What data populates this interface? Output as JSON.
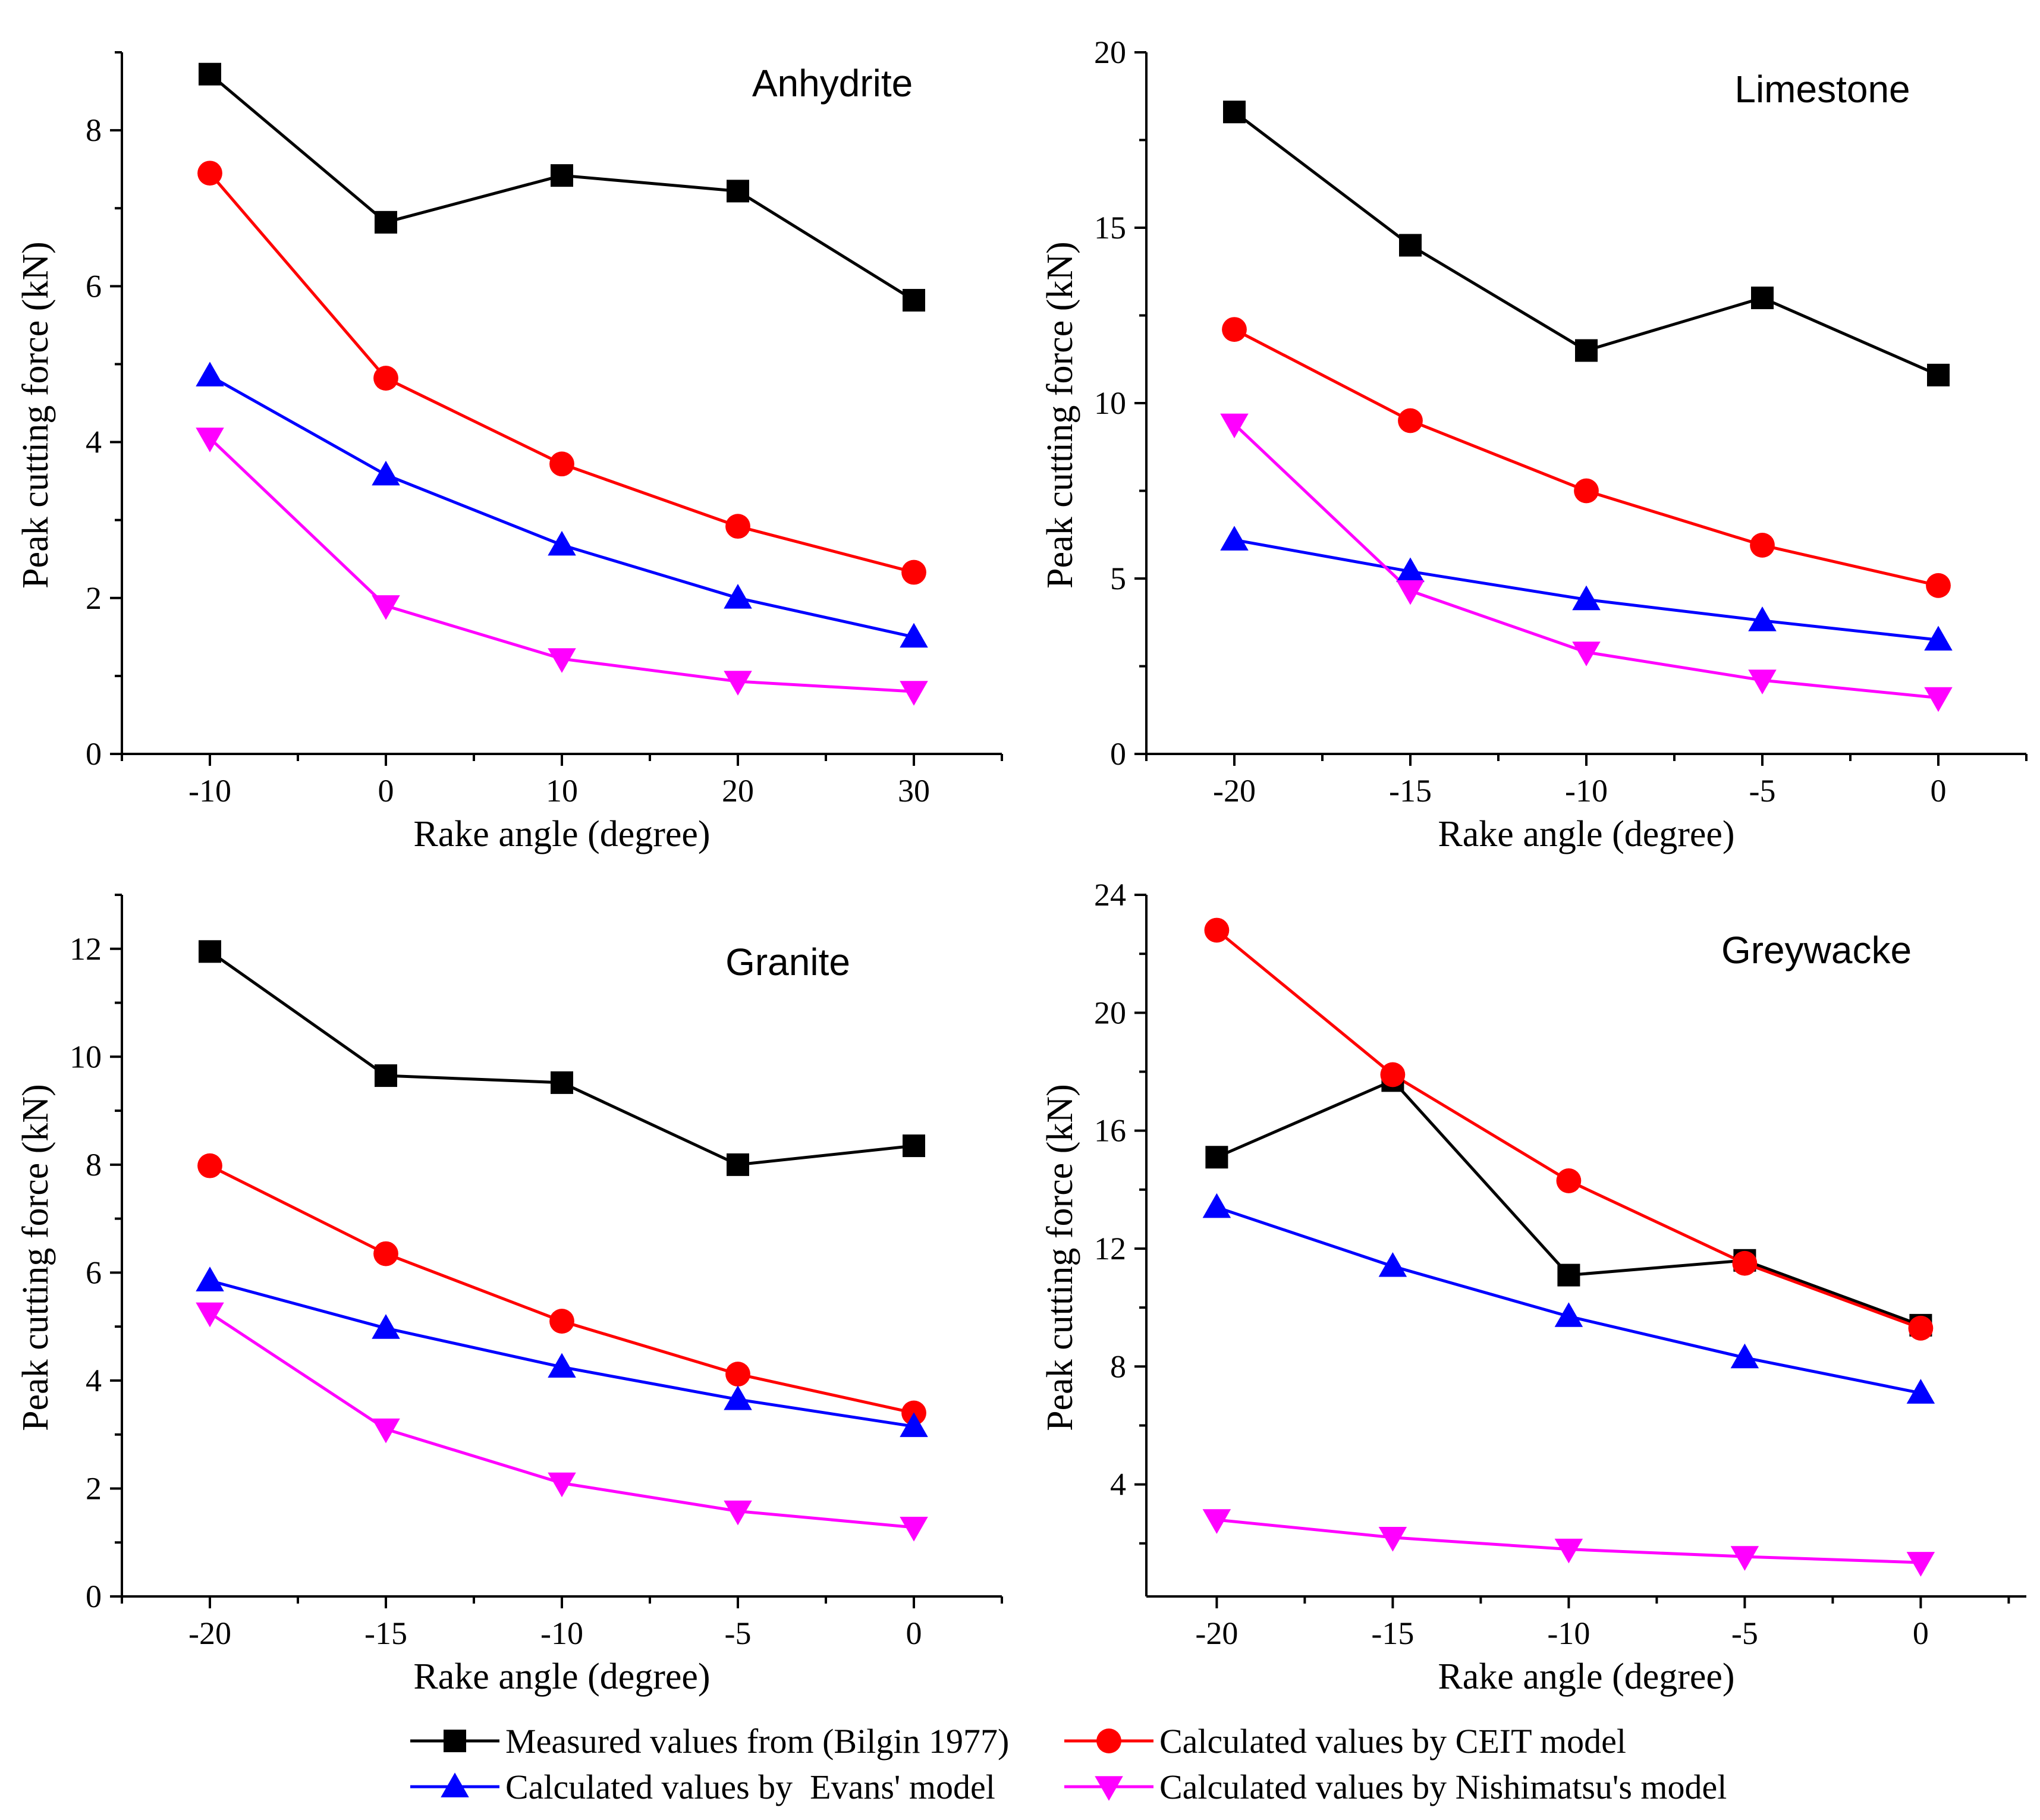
{
  "chart_data": [
    {
      "type": "line",
      "title": "Anhydrite",
      "xlabel": "Rake angle (degree)",
      "ylabel": "Peak cutting force (kN)",
      "xlim": [
        -15,
        35
      ],
      "ylim": [
        0,
        9
      ],
      "x": [
        -10,
        0,
        10,
        20,
        30
      ],
      "xticks": [
        -10,
        0,
        10,
        20,
        30
      ],
      "xtick_labels": [
        "-10",
        "0",
        "10",
        "20",
        "30"
      ],
      "yticks": [
        0,
        2,
        4,
        6,
        8
      ],
      "ytick_labels": [
        "0",
        "2",
        "4",
        "6",
        "8"
      ],
      "series": [
        {
          "name": "Measured values from (Bilgin 1977)",
          "values": [
            8.72,
            6.82,
            7.42,
            7.22,
            5.82
          ]
        },
        {
          "name": "Calculated values by CEIT model",
          "values": [
            7.45,
            4.82,
            3.72,
            2.92,
            2.33
          ]
        },
        {
          "name": "Calculated values by  Evans' model",
          "values": [
            4.85,
            3.58,
            2.68,
            2.0,
            1.5
          ]
        },
        {
          "name": "Calculated values by Nishimatsu's model",
          "values": [
            4.05,
            1.9,
            1.22,
            0.93,
            0.8
          ]
        }
      ]
    },
    {
      "type": "line",
      "title": "Limestone",
      "xlabel": "Rake angle (degree)",
      "ylabel": "Peak cutting force (kN)",
      "xlim": [
        -22.5,
        2.5
      ],
      "ylim": [
        0,
        20
      ],
      "x": [
        -20,
        -15,
        -10,
        -5,
        0
      ],
      "xticks": [
        -20,
        -15,
        -10,
        -5,
        0
      ],
      "xtick_labels": [
        "-20",
        "-15",
        "-10",
        "-5",
        "0"
      ],
      "yticks": [
        0,
        5,
        10,
        15,
        20
      ],
      "ytick_labels": [
        "0",
        "5",
        "10",
        "15",
        "20"
      ],
      "series": [
        {
          "name": "Measured values from (Bilgin 1977)",
          "values": [
            18.3,
            14.5,
            11.5,
            13.0,
            10.8
          ]
        },
        {
          "name": "Calculated values by CEIT model",
          "values": [
            12.1,
            9.5,
            7.5,
            5.95,
            4.8
          ]
        },
        {
          "name": "Calculated values by  Evans' model",
          "values": [
            6.1,
            5.2,
            4.4,
            3.8,
            3.25
          ]
        },
        {
          "name": "Calculated values by Nishimatsu's model",
          "values": [
            9.4,
            4.65,
            2.9,
            2.1,
            1.6
          ]
        }
      ]
    },
    {
      "type": "line",
      "title": "Granite",
      "xlabel": "Rake angle (degree)",
      "ylabel": "Peak cutting force (kN)",
      "xlim": [
        -22.5,
        2.5
      ],
      "ylim": [
        0,
        13
      ],
      "x": [
        -20,
        -15,
        -10,
        -5,
        0
      ],
      "xticks": [
        -20,
        -15,
        -10,
        -5,
        0
      ],
      "xtick_labels": [
        "-20",
        "-15",
        "-10",
        "-5",
        "0"
      ],
      "yticks": [
        0,
        2,
        4,
        6,
        8,
        10,
        12
      ],
      "ytick_labels": [
        "0",
        "2",
        "4",
        "6",
        "8",
        "10",
        "12"
      ],
      "series": [
        {
          "name": "Measured values from (Bilgin 1977)",
          "values": [
            11.95,
            9.65,
            9.52,
            8.0,
            8.35
          ]
        },
        {
          "name": "Calculated values by CEIT model",
          "values": [
            7.98,
            6.35,
            5.1,
            4.12,
            3.4
          ]
        },
        {
          "name": "Calculated values by  Evans' model",
          "values": [
            5.85,
            4.97,
            4.25,
            3.65,
            3.15
          ]
        },
        {
          "name": "Calculated values by Nishimatsu's model",
          "values": [
            5.25,
            3.1,
            2.1,
            1.58,
            1.28
          ]
        }
      ]
    },
    {
      "type": "line",
      "title": "Greywacke",
      "xlabel": "Rake angle (degree)",
      "ylabel": "Peak cutting force (kN)",
      "xlim": [
        -22,
        3
      ],
      "ylim": [
        0.2,
        24
      ],
      "x": [
        -20,
        -15,
        -10,
        -5,
        0
      ],
      "xticks": [
        -20,
        -15,
        -10,
        -5,
        0
      ],
      "xtick_labels": [
        "-20",
        "-15",
        "-10",
        "-5",
        "0"
      ],
      "yticks": [
        4,
        8,
        12,
        16,
        20,
        24
      ],
      "ytick_labels": [
        "4",
        "8",
        "12",
        "16",
        "20",
        "24"
      ],
      "series": [
        {
          "name": "Measured values from (Bilgin 1977)",
          "values": [
            15.1,
            17.7,
            11.1,
            11.6,
            9.4
          ]
        },
        {
          "name": "Calculated values by CEIT model",
          "values": [
            22.8,
            17.9,
            14.3,
            11.5,
            9.3
          ]
        },
        {
          "name": "Calculated values by  Evans' model",
          "values": [
            13.4,
            11.4,
            9.7,
            8.3,
            7.1
          ]
        },
        {
          "name": "Calculated values by Nishimatsu's model",
          "values": [
            2.8,
            2.2,
            1.8,
            1.55,
            1.35
          ]
        }
      ]
    }
  ],
  "legend": [
    {
      "label": "Measured values from (Bilgin 1977)",
      "color": "#000000",
      "marker": "square"
    },
    {
      "label": "Calculated values by CEIT model",
      "color": "#ff0000",
      "marker": "circle"
    },
    {
      "label": "Calculated values by  Evans' model",
      "color": "#0000ff",
      "marker": "triangle-up"
    },
    {
      "label": "Calculated values by Nishimatsu's model",
      "color": "#ff00ff",
      "marker": "triangle-down"
    }
  ]
}
